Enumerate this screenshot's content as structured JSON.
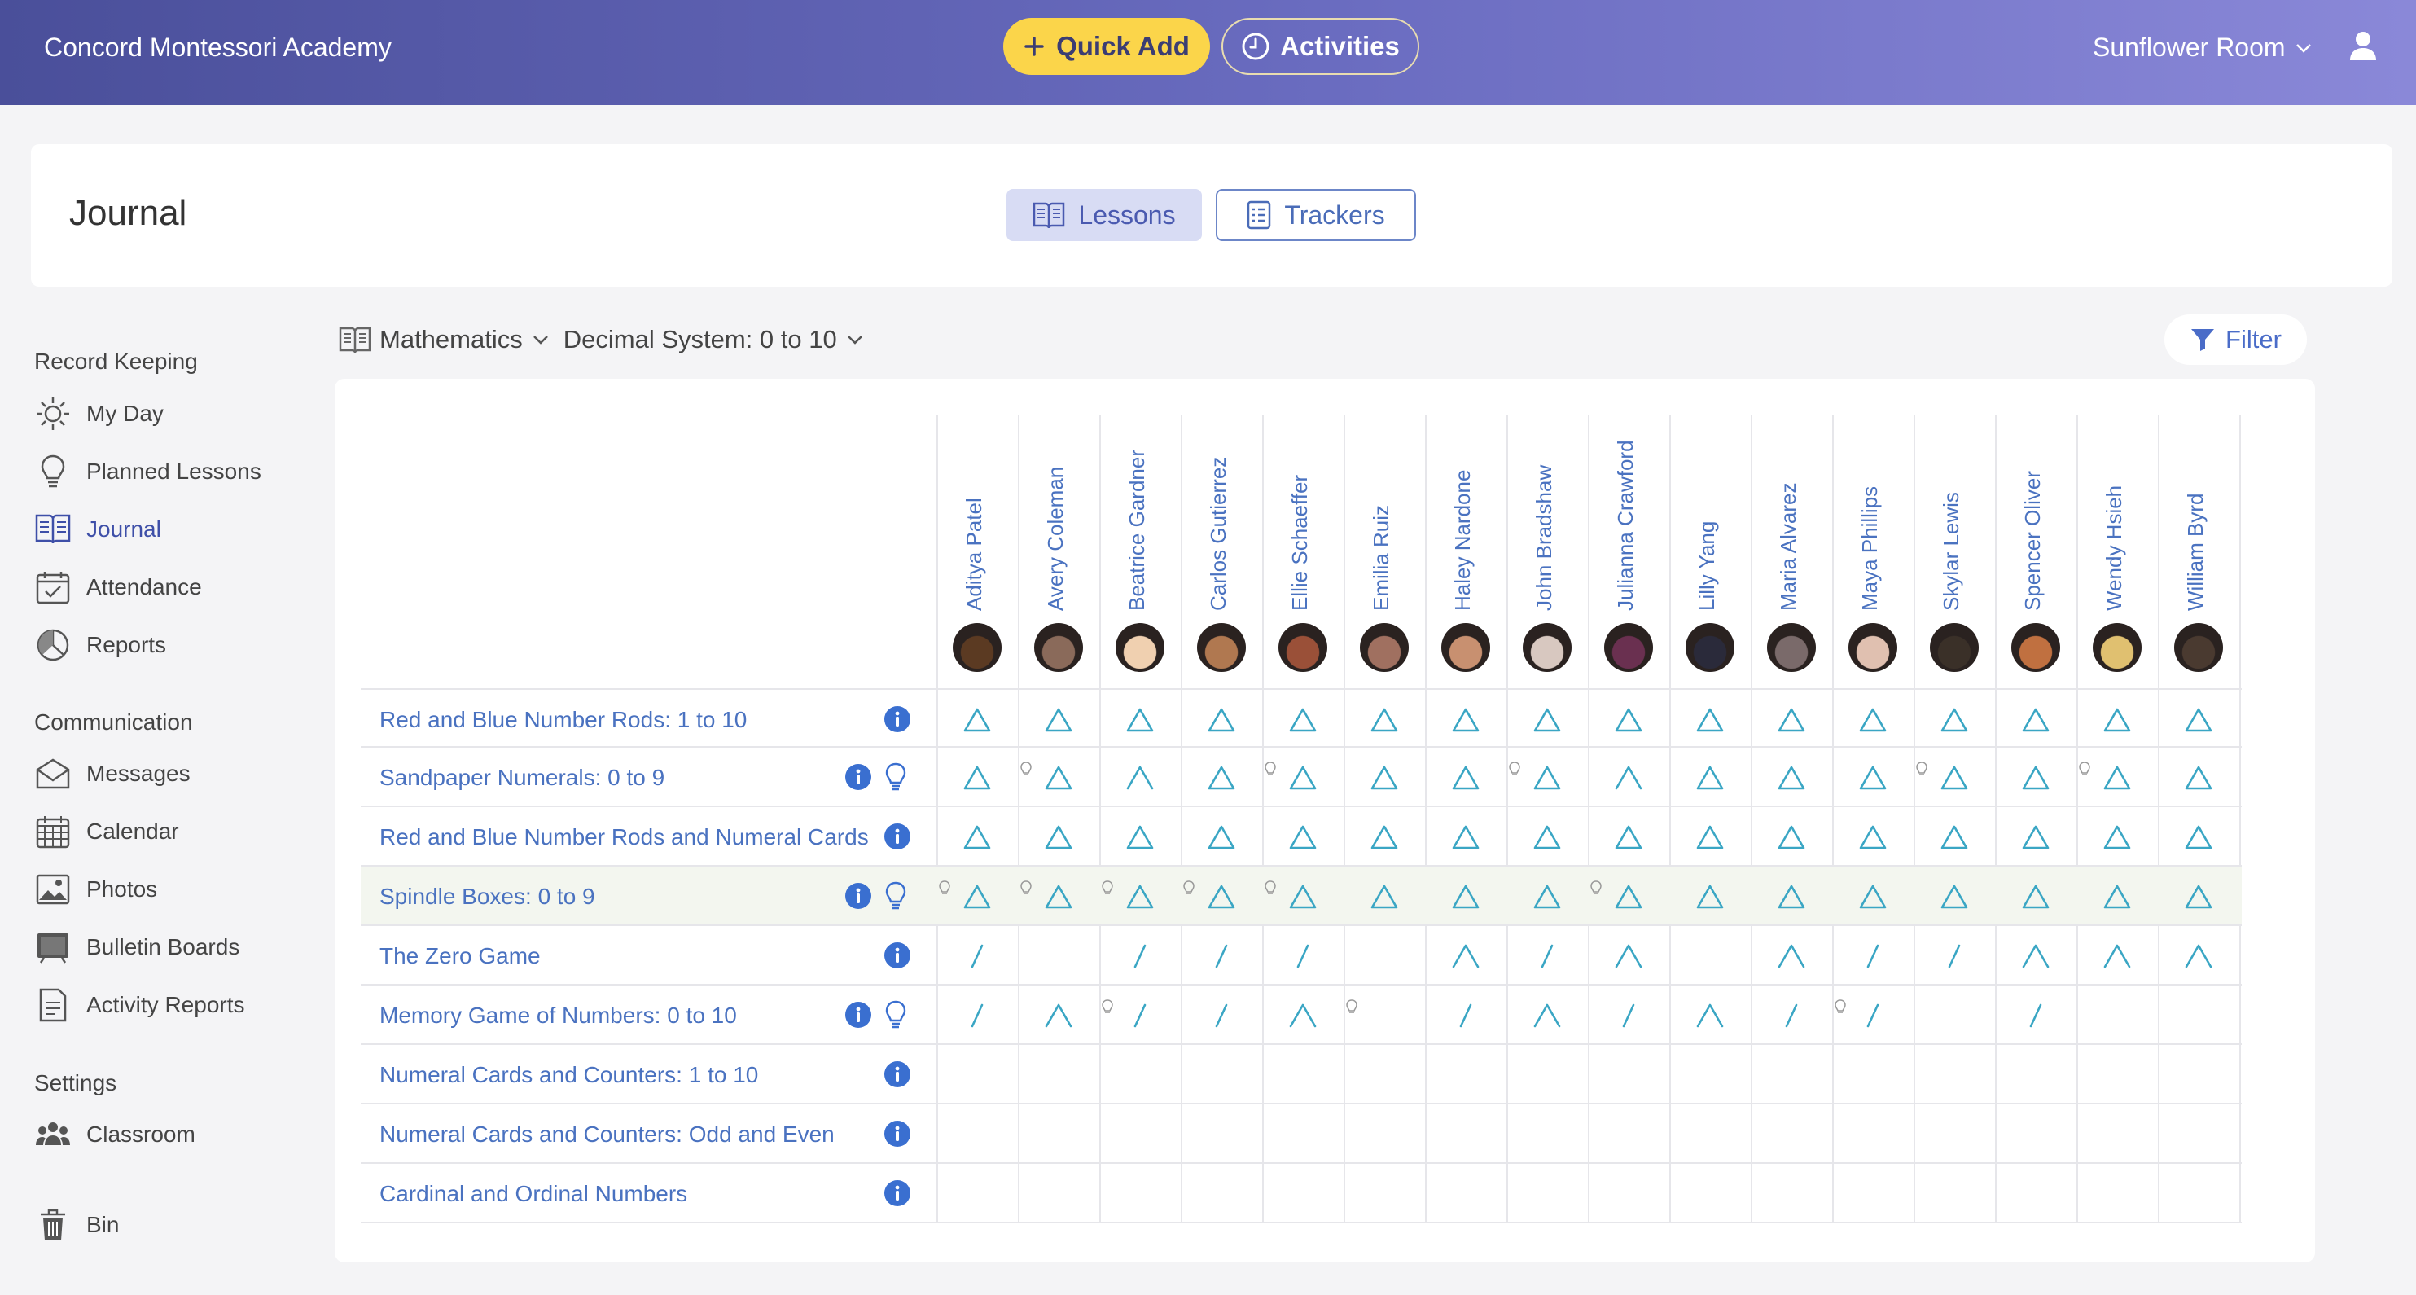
{
  "header": {
    "school": "Concord Montessori Academy",
    "quick_add": "Quick Add",
    "activities": "Activities",
    "room": "Sunflower Room"
  },
  "journal": {
    "title": "Journal",
    "tabs": [
      {
        "label": "Lessons"
      },
      {
        "label": "Trackers"
      }
    ]
  },
  "sidebar": {
    "sections": [
      {
        "label": "Record Keeping"
      },
      {
        "label": "Communication"
      },
      {
        "label": "Settings"
      }
    ],
    "items": [
      {
        "label": "My Day"
      },
      {
        "label": "Planned Lessons"
      },
      {
        "label": "Journal"
      },
      {
        "label": "Attendance"
      },
      {
        "label": "Reports"
      },
      {
        "label": "Messages"
      },
      {
        "label": "Calendar"
      },
      {
        "label": "Photos"
      },
      {
        "label": "Bulletin Boards"
      },
      {
        "label": "Activity Reports"
      },
      {
        "label": "Classroom"
      },
      {
        "label": "Bin"
      }
    ]
  },
  "filters": {
    "subject": "Mathematics",
    "area": "Decimal System: 0 to 10",
    "filter_label": "Filter"
  },
  "students": [
    {
      "name": "Aditya Patel",
      "skin": "#5b3a22"
    },
    {
      "name": "Avery Coleman",
      "skin": "#8a6a5a"
    },
    {
      "name": "Beatrice Gardner",
      "skin": "#f0d0b0"
    },
    {
      "name": "Carlos Gutierrez",
      "skin": "#b07850"
    },
    {
      "name": "Ellie Schaeffer",
      "skin": "#9a5038"
    },
    {
      "name": "Emilia Ruiz",
      "skin": "#a07060"
    },
    {
      "name": "Haley Nardone",
      "skin": "#c89070"
    },
    {
      "name": "John Bradshaw",
      "skin": "#d8c8c0"
    },
    {
      "name": "Julianna Crawford",
      "skin": "#6a3050"
    },
    {
      "name": "Lilly Yang",
      "skin": "#2a2a3a"
    },
    {
      "name": "Maria Alvarez",
      "skin": "#7a6a6a"
    },
    {
      "name": "Maya Phillips",
      "skin": "#e0c0b0"
    },
    {
      "name": "Skylar Lewis",
      "skin": "#3a3028"
    },
    {
      "name": "Spencer Oliver",
      "skin": "#c07040"
    },
    {
      "name": "Wendy Hsieh",
      "skin": "#e0c070"
    },
    {
      "name": "William Byrd",
      "skin": "#4a3a30"
    }
  ],
  "lessons": [
    {
      "label": "Red and Blue Number Rods: 1 to 10",
      "bulb": false,
      "highlight": false,
      "marks": [
        "T",
        "T",
        "T",
        "T",
        "T",
        "T",
        "T",
        "T",
        "T",
        "T",
        "T",
        "T",
        "T",
        "T",
        "T",
        "T"
      ],
      "minis": []
    },
    {
      "label": "Sandpaper Numerals: 0 to 9",
      "bulb": true,
      "highlight": false,
      "marks": [
        "T",
        "T",
        "C",
        "T",
        "T",
        "T",
        "T",
        "T",
        "C",
        "T",
        "T",
        "T",
        "T",
        "T",
        "T",
        "T"
      ],
      "minis": [
        1,
        4,
        7,
        12,
        14
      ]
    },
    {
      "label": "Red and Blue Number Rods and Numeral Cards",
      "bulb": false,
      "highlight": false,
      "marks": [
        "T",
        "T",
        "T",
        "T",
        "T",
        "T",
        "T",
        "T",
        "T",
        "T",
        "T",
        "T",
        "T",
        "T",
        "T",
        "T"
      ],
      "minis": []
    },
    {
      "label": "Spindle Boxes: 0 to 9",
      "bulb": true,
      "highlight": true,
      "marks": [
        "T",
        "T",
        "T",
        "T",
        "T",
        "T",
        "T",
        "T",
        "T",
        "T",
        "T",
        "T",
        "T",
        "T",
        "T",
        "T"
      ],
      "minis": [
        0,
        1,
        2,
        3,
        4,
        8
      ]
    },
    {
      "label": "The Zero Game",
      "bulb": false,
      "highlight": false,
      "marks": [
        "S",
        "",
        "S",
        "S",
        "S",
        "",
        "C",
        "S",
        "C",
        "",
        "C",
        "S",
        "S",
        "C",
        "C",
        "C"
      ],
      "minis": []
    },
    {
      "label": "Memory Game of Numbers: 0 to 10",
      "bulb": true,
      "highlight": false,
      "marks": [
        "S",
        "C",
        "S",
        "S",
        "C",
        "",
        "S",
        "C",
        "S",
        "C",
        "S",
        "S",
        "",
        "S",
        "",
        ""
      ],
      "minis": [
        2,
        5,
        11
      ]
    },
    {
      "label": "Numeral Cards and Counters: 1 to 10",
      "bulb": false,
      "highlight": false,
      "marks": [
        "",
        "",
        "",
        "",
        "",
        "",
        "",
        "",
        "",
        "",
        "",
        "",
        "",
        "",
        "",
        ""
      ],
      "minis": []
    },
    {
      "label": "Numeral Cards and Counters: Odd and Even",
      "bulb": false,
      "highlight": false,
      "marks": [
        "",
        "",
        "",
        "",
        "",
        "",
        "",
        "",
        "",
        "",
        "",
        "",
        "",
        "",
        "",
        ""
      ],
      "minis": []
    },
    {
      "label": "Cardinal and Ordinal Numbers",
      "bulb": false,
      "highlight": false,
      "marks": [
        "",
        "",
        "",
        "",
        "",
        "",
        "",
        "",
        "",
        "",
        "",
        "",
        "",
        "",
        "",
        ""
      ],
      "minis": []
    }
  ],
  "colors": {
    "accent": "#3aa6c4",
    "link": "#4a72c0",
    "info": "#3a6fd0"
  }
}
